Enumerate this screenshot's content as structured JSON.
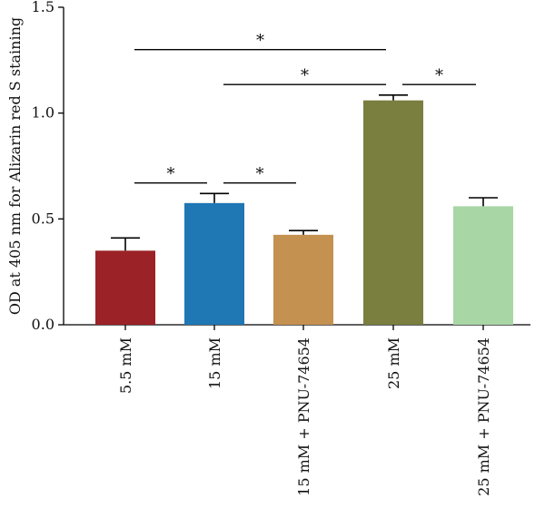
{
  "chart_data": {
    "type": "bar",
    "ylabel": "OD at 405 nm for Alizarin red S staining",
    "ylim": [
      0,
      1.5
    ],
    "yticks": [
      "0.0",
      "0.5",
      "1.0",
      "1.5"
    ],
    "categories": [
      "5.5 mM",
      "15 mM",
      "15 mM + PNU-74654",
      "25 mM",
      "25 mM + PNU-74654"
    ],
    "values": [
      0.35,
      0.575,
      0.425,
      1.06,
      0.56
    ],
    "errors": [
      0.06,
      0.045,
      0.02,
      0.025,
      0.04
    ],
    "colors": [
      "#9b2226",
      "#1f77b4",
      "#c49150",
      "#7a7e3f",
      "#a9d6a5"
    ],
    "significance": [
      {
        "from": 0,
        "to": 1,
        "y": 0.67,
        "label": "*"
      },
      {
        "from": 1,
        "to": 2,
        "y": 0.67,
        "label": "*"
      },
      {
        "from": 0,
        "to": 3,
        "y": 1.3,
        "label": "*"
      },
      {
        "from": 1,
        "to": 3,
        "y": 1.135,
        "label": "*"
      },
      {
        "from": 3,
        "to": 4,
        "y": 1.135,
        "label": "*"
      }
    ]
  }
}
